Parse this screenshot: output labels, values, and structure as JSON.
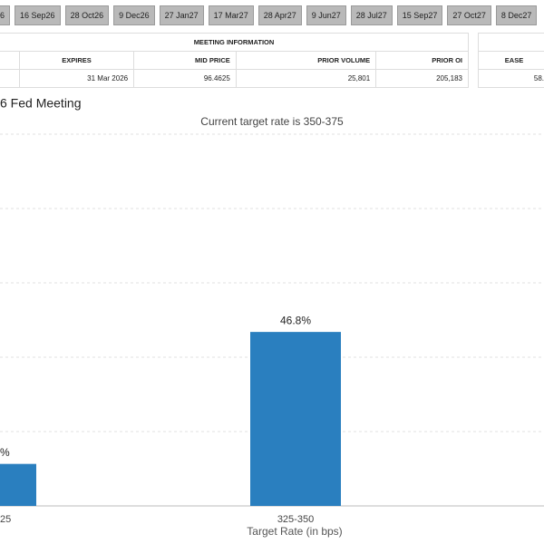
{
  "tabs": [
    "6",
    "16 Sep26",
    "28 Oct26",
    "9 Dec26",
    "27 Jan27",
    "17 Mar27",
    "28 Apr27",
    "9 Jun27",
    "28 Jul27",
    "15 Sep27",
    "27 Oct27",
    "8 Dec27"
  ],
  "table": {
    "title": "MEETING INFORMATION",
    "columns": [
      "EXPIRES",
      "MID PRICE",
      "PRIOR VOLUME",
      "PRIOR OI"
    ],
    "row": [
      "31 Mar 2026",
      "96.4625",
      "25,801",
      "205,183"
    ]
  },
  "side_table": {
    "column": "EASE",
    "value": "58."
  },
  "chart_data": {
    "type": "bar",
    "title": "6 Fed Meeting",
    "subtitle": "Current target rate is 350-375",
    "categories": [
      "25",
      "325-350"
    ],
    "values": [
      11.3,
      46.8
    ],
    "value_labels": [
      "%",
      "46.8%"
    ],
    "x_label": "Target Rate (in bps)",
    "color": "#2a7fbf",
    "ylim": [
      0,
      100
    ],
    "yticks": [
      0,
      20,
      40,
      60,
      80,
      100
    ],
    "grid": true
  }
}
